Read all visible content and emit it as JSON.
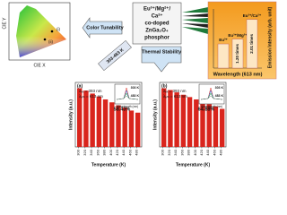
{
  "chart_data": [
    {
      "type": "bar",
      "title": "Emission Intensity (arb. unit)",
      "x_label": "Wavelength (613 nm)",
      "categories": [
        "Eu³⁺",
        "Eu³⁺/Mg²⁺",
        "Eu³⁺/Ca²⁺"
      ],
      "values": [
        1,
        1.2,
        2.01
      ],
      "annotations": [
        "1.20 times",
        "2.01 times"
      ],
      "color": "#fde7c4",
      "ylim": [
        0,
        2.3
      ]
    },
    {
      "type": "bar",
      "panel": "(a)",
      "x_label": "Temperature (K)",
      "y_label": "Intensity (a.u.)",
      "excitation": "λₑₓ = 393 nm",
      "emission": "λₑₘ = 613 nm",
      "annotation": "58.43%",
      "inset": {
        "legend": [
          "303 K",
          "483 K"
        ],
        "x_label": "Wavelength (nm)"
      },
      "x": [
        303,
        323,
        343,
        363,
        383,
        403,
        423,
        443,
        463,
        483
      ],
      "values": [
        100,
        96,
        91,
        86,
        81,
        76,
        71,
        67,
        62,
        58.43
      ],
      "color": "#d9251d",
      "xlim": [
        290,
        495
      ],
      "xticks": [
        300,
        320,
        340,
        360,
        380,
        400,
        420,
        440,
        460,
        480
      ],
      "ylim": [
        0,
        110
      ]
    },
    {
      "type": "bar",
      "panel": "(b)",
      "x_label": "Temperature (K)",
      "y_label": "Intensity (a.u.)",
      "excitation": "λₑₓ = 393 nm",
      "emission": "λₑₘ = 613 nm",
      "annotation": "64.88%",
      "inset": {
        "legend": [
          "303 K",
          "483 K"
        ],
        "x_label": "Wavelength (nm)"
      },
      "x": [
        303,
        323,
        343,
        363,
        383,
        403,
        423,
        443,
        463,
        483
      ],
      "values": [
        100,
        97,
        93,
        89,
        85,
        81,
        77,
        73,
        69,
        64.88
      ],
      "color": "#d9251d",
      "xlim": [
        290,
        495
      ],
      "xticks": [
        300,
        320,
        340,
        360,
        380,
        400,
        420,
        440,
        460,
        480
      ],
      "ylim": [
        0,
        110
      ]
    }
  ],
  "diagram": {
    "cie_x": "CIE X",
    "cie_y": "CIE Y",
    "points": [
      "(i)",
      "(ii)"
    ],
    "color_tunability": "Color Tunability",
    "thermal_stability": "Thermal Stability",
    "temperature_range": "303-483 K",
    "center": [
      "Eu³⁺/Mg²⁺/",
      "Ca²⁺",
      "co-doped",
      "ZnGa₂O₄",
      "phosphor"
    ]
  }
}
